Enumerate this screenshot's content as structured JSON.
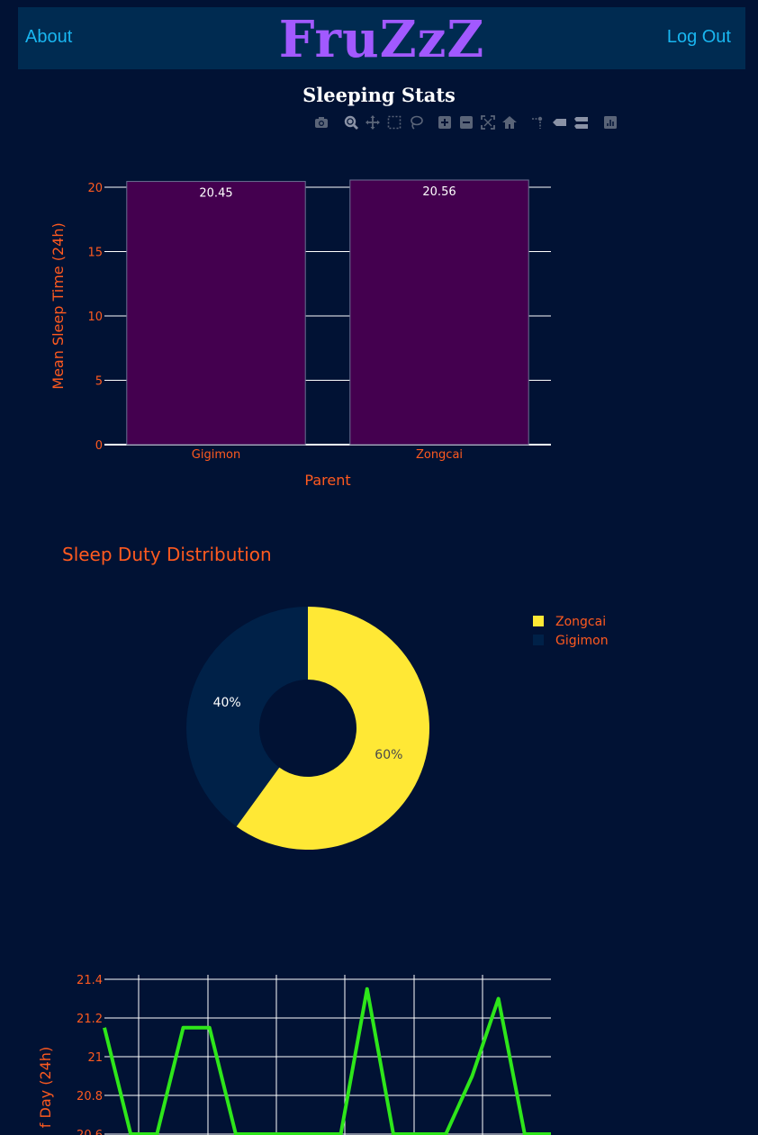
{
  "nav": {
    "about_label": "About",
    "brand": "FruZzZ",
    "logout_label": "Log Out"
  },
  "page": {
    "title": "Sleeping Stats"
  },
  "modebar": {
    "icons": [
      "camera-icon",
      "zoom-icon",
      "pan-icon",
      "box-select-icon",
      "lasso-select-icon",
      "zoom-in-icon",
      "zoom-out-icon",
      "autoscale-icon",
      "reset-axes-icon",
      "spike-lines-icon",
      "hover-closest-icon",
      "hover-compare-icon",
      "plotly-logo-icon"
    ]
  },
  "colors": {
    "background": "#011234",
    "accent_text": "#ff5a1f",
    "bar_fill": "#44004f",
    "line": "#2ee61a",
    "pie_yellow": "#ffe835",
    "pie_navy": "#002148"
  },
  "chart_data": [
    {
      "type": "bar",
      "categories": [
        "Gigimon",
        "Zongcai"
      ],
      "values": [
        20.45,
        20.56
      ],
      "data_labels": [
        "20.45",
        "20.56"
      ],
      "title": "",
      "xlabel": "Parent",
      "ylabel": "Mean Sleep Time (24h)",
      "ylim": [
        0,
        20.56
      ],
      "yticks": [
        0,
        5,
        10,
        15,
        20
      ],
      "grid": true
    },
    {
      "type": "pie",
      "title": "Sleep Duty Distribution",
      "labels": [
        "Zongcai",
        "Gigimon"
      ],
      "values": [
        60,
        40
      ],
      "data_labels": [
        "60%",
        "40%"
      ],
      "hole": true,
      "legend": "top-right"
    },
    {
      "type": "line",
      "title": "",
      "ylabel": "f Day (24h)",
      "yticks": [
        20.6,
        20.8,
        21,
        21.2,
        21.4
      ],
      "ytick_labels": [
        "20.6",
        "20.8",
        "21",
        "21.2",
        "21.4"
      ],
      "ylim": [
        20.6,
        21.45
      ],
      "x": [
        0,
        1,
        2,
        3,
        4,
        5,
        6,
        7,
        8,
        9,
        10,
        11,
        12,
        13,
        14,
        15,
        16,
        17
      ],
      "values": [
        21.15,
        20.6,
        20.6,
        21.15,
        21.15,
        20.6,
        20.6,
        20.6,
        20.6,
        20.6,
        21.35,
        20.6,
        20.6,
        20.6,
        20.9,
        21.3,
        20.6,
        20.6
      ],
      "grid": true
    }
  ]
}
